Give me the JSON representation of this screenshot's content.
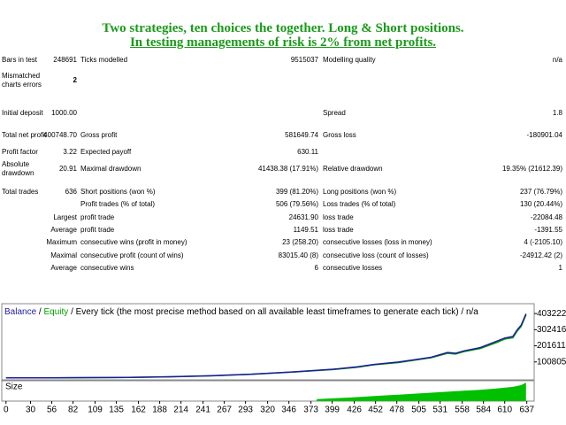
{
  "header": {
    "line1": "Two strategies, ten choices the together. Long & Short positions.",
    "line2": "In testing managements of risk is 2% from net profits."
  },
  "table": {
    "rows": [
      [
        "Bars in test",
        "248691",
        "Ticks modelled",
        "9515037",
        "Modelling quality",
        "n/a"
      ],
      [
        "Mismatched charts errors",
        "2"
      ],
      [
        "Initial deposit",
        "1000.00",
        "Spread",
        "1.8"
      ],
      [
        "Total net profit",
        "400748.70",
        "Gross profit",
        "581649.74",
        "Gross loss",
        "-180901.04"
      ],
      [
        "Profit factor",
        "3.22",
        "Expected payoff",
        "630.11"
      ],
      [
        "Absolute drawdown",
        "20.91",
        "Maximal drawdown",
        "41438.38 (17.91%)",
        "Relative drawdown",
        "19.35% (21612.39)"
      ],
      [
        "Total trades",
        "636",
        "Short positions (won %)",
        "399 (81.20%)",
        "Long positions (won %)",
        "237 (76.79%)"
      ],
      [
        "Profit trades (% of total)",
        "506 (79.56%)",
        "Loss trades (% of total)",
        "130 (20.44%)"
      ],
      [
        "Largest",
        "profit trade",
        "24631.90",
        "loss trade",
        "-22084.48"
      ],
      [
        "Average",
        "profit trade",
        "1149.51",
        "loss trade",
        "-1391.55"
      ],
      [
        "Maximum",
        "consecutive wins (profit in money)",
        "23 (258.20)",
        "consecutive losses (loss in money)",
        "4 (-2105.10)"
      ],
      [
        "Maximal",
        "consecutive profit (count of wins)",
        "83015.40 (8)",
        "consecutive loss (count of losses)",
        "-24912.42 (2)"
      ],
      [
        "Average",
        "consecutive wins",
        "6",
        "consecutive losses",
        "1"
      ]
    ]
  },
  "chart_data": {
    "type": "line",
    "legend_separator": "/",
    "caption": "/ Every tick (the most precise method based on all available least timeframes to generate each tick) / n/a",
    "series": [
      {
        "name": "Balance",
        "color": "#1c1c9c",
        "x": [
          0,
          50,
          100,
          150,
          200,
          250,
          300,
          350,
          400,
          430,
          450,
          480,
          500,
          520,
          540,
          550,
          560,
          580,
          600,
          610,
          620,
          625,
          630,
          636
        ],
        "values": [
          1000,
          1500,
          2500,
          4500,
          8000,
          14000,
          24000,
          38000,
          55000,
          70000,
          85000,
          100000,
          115000,
          130000,
          160000,
          155000,
          170000,
          190000,
          230000,
          250000,
          260000,
          300000,
          330000,
          401749
        ]
      },
      {
        "name": "Equity",
        "color": "#00a000",
        "x": [
          0,
          50,
          100,
          150,
          200,
          250,
          300,
          350,
          400,
          430,
          450,
          480,
          500,
          520,
          540,
          550,
          560,
          580,
          600,
          610,
          620,
          625,
          630,
          636
        ],
        "values": [
          1000,
          1400,
          2400,
          4300,
          7800,
          13500,
          23000,
          37000,
          53000,
          68000,
          83000,
          97000,
          112000,
          127000,
          155000,
          150000,
          165000,
          185000,
          222000,
          244000,
          252000,
          292000,
          322000,
          395000
        ]
      }
    ],
    "xlim": [
      -3,
      646
    ],
    "ylim": [
      -11200,
      464800
    ],
    "yticks": [
      100805,
      201611,
      302416,
      403222
    ],
    "xticks": [
      0,
      30,
      56,
      82,
      109,
      135,
      162,
      188,
      214,
      241,
      267,
      293,
      320,
      346,
      373,
      399,
      426,
      452,
      478,
      505,
      531,
      558,
      584,
      610,
      637
    ],
    "size": {
      "label": "Size",
      "color": "#00c000",
      "x": [
        380,
        400,
        420,
        440,
        460,
        480,
        500,
        520,
        540,
        560,
        580,
        600,
        620,
        630,
        636
      ],
      "values": [
        1,
        1.4,
        1.8,
        2.3,
        2.8,
        3.3,
        3.8,
        4.3,
        4.8,
        5.3,
        5.8,
        6.5,
        7.3,
        8.2,
        9.5
      ],
      "ylim": [
        0,
        10
      ]
    }
  }
}
